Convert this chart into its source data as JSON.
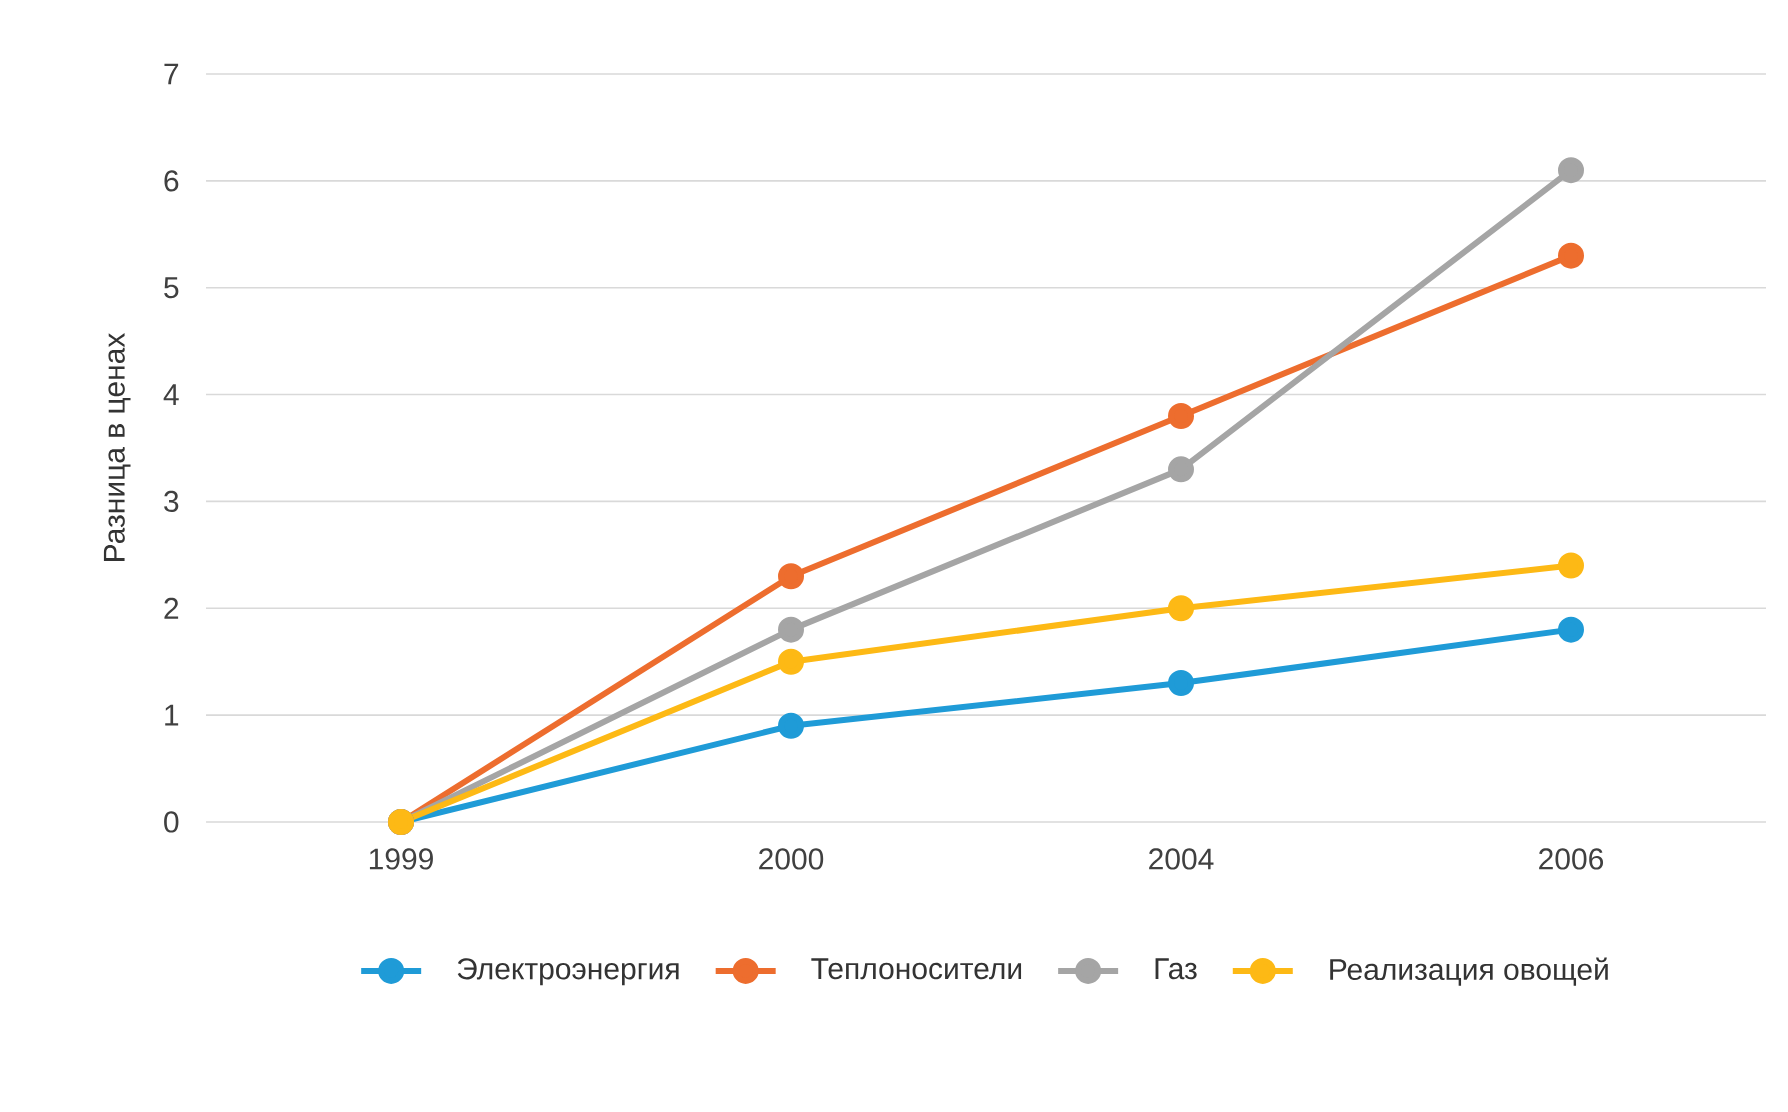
{
  "chart_data": {
    "type": "line",
    "ylabel": "Разница в ценах",
    "categories": [
      "1999",
      "2000",
      "2004",
      "2006"
    ],
    "series": [
      {
        "name": "Электроэнергия",
        "color": "#1f9bd7",
        "values": [
          0,
          0.9,
          1.3,
          1.8
        ]
      },
      {
        "name": "Теплоносители",
        "color": "#ed6d2e",
        "values": [
          0,
          2.3,
          3.8,
          5.3
        ]
      },
      {
        "name": "Газ",
        "color": "#a5a5a5",
        "values": [
          0,
          1.8,
          3.3,
          6.1
        ]
      },
      {
        "name": "Реализация овощей",
        "color": "#fdb915",
        "values": [
          0,
          1.5,
          2.0,
          2.4
        ]
      }
    ],
    "ylim": [
      0,
      7
    ],
    "yticks": [
      0,
      1,
      2,
      3,
      4,
      5,
      6,
      7
    ],
    "grid": "y",
    "legend": "bottom",
    "marker": "circle",
    "line_style": "solid"
  }
}
